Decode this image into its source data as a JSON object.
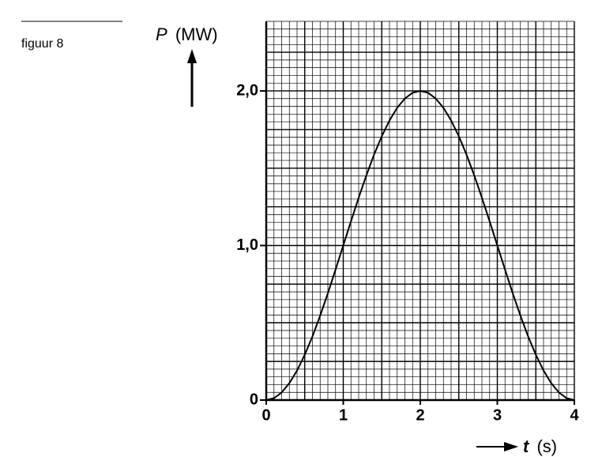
{
  "chart_data": {
    "type": "line",
    "caption": "figuur 8",
    "ylabel": "P",
    "ylabel_unit": "(MW)",
    "xlabel": "t",
    "xlabel_unit": "(s)",
    "x": [
      0,
      0.1,
      0.2,
      0.3,
      0.4,
      0.5,
      0.6,
      0.7,
      0.8,
      0.9,
      1,
      1.1,
      1.2,
      1.3,
      1.4,
      1.5,
      1.6,
      1.7,
      1.8,
      1.9,
      2,
      2.1,
      2.2,
      2.3,
      2.4,
      2.5,
      2.6,
      2.7,
      2.8,
      2.9,
      3,
      3.1,
      3.2,
      3.3,
      3.4,
      3.5,
      3.6,
      3.7,
      3.8,
      3.9,
      4
    ],
    "values": [
      0,
      0.012,
      0.049,
      0.109,
      0.191,
      0.293,
      0.412,
      0.546,
      0.691,
      0.844,
      1,
      1.156,
      1.309,
      1.454,
      1.588,
      1.707,
      1.809,
      1.891,
      1.951,
      1.988,
      2,
      1.988,
      1.951,
      1.891,
      1.809,
      1.707,
      1.588,
      1.454,
      1.309,
      1.156,
      1,
      0.844,
      0.691,
      0.546,
      0.412,
      0.293,
      0.191,
      0.109,
      0.049,
      0.012,
      0
    ],
    "color": "#000000",
    "xlim": [
      0,
      4
    ],
    "ylim": [
      0,
      2.45
    ],
    "xticks": [
      0,
      1,
      2,
      3,
      4
    ],
    "yticks": [
      0,
      {
        "value": 1,
        "label": "1,0"
      },
      {
        "value": 2,
        "label": "2,0"
      }
    ],
    "grid": true
  }
}
